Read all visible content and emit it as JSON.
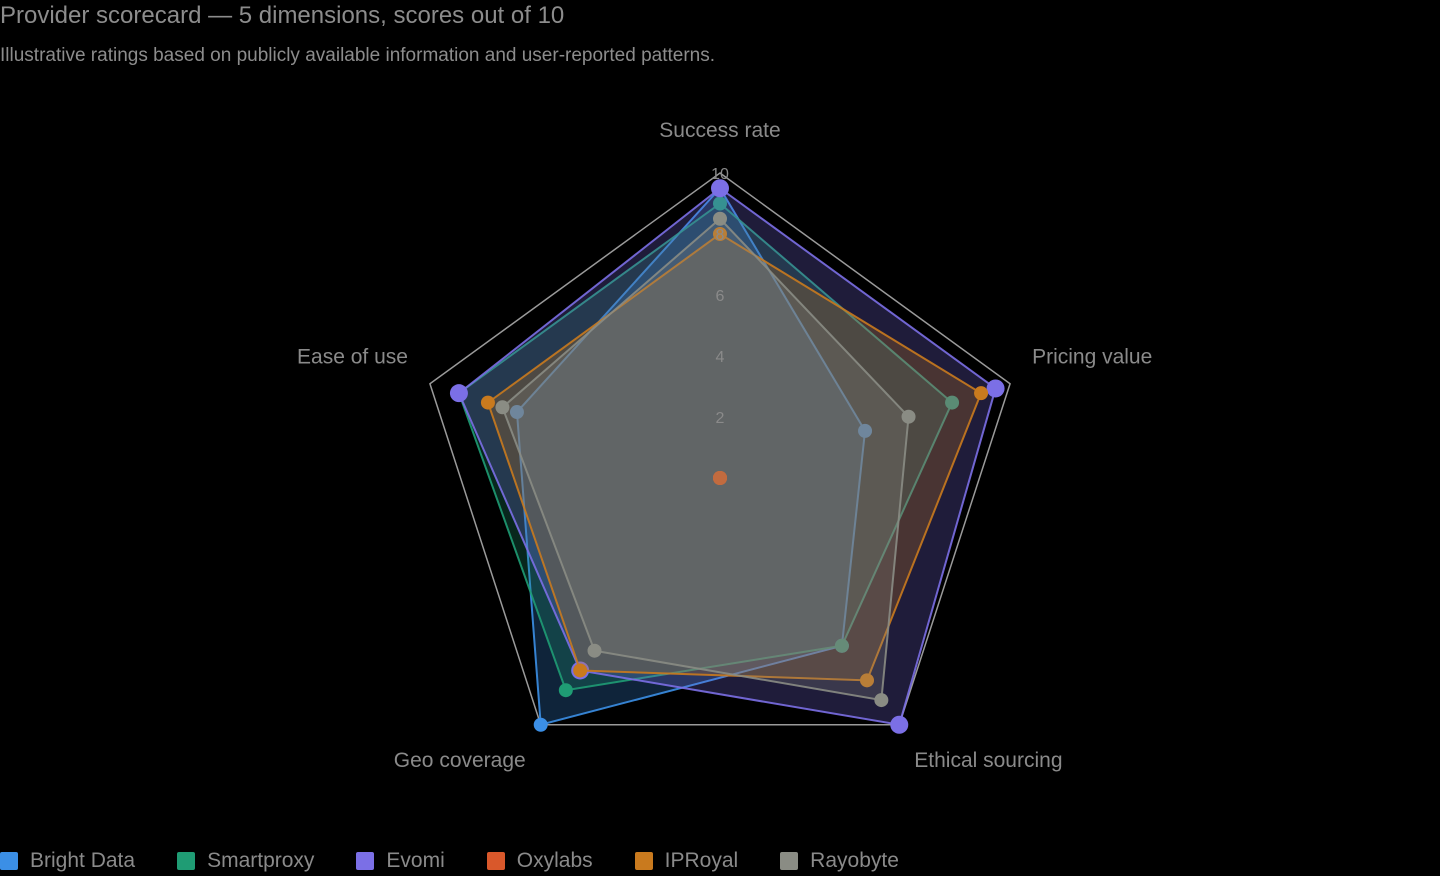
{
  "header": {
    "title": "Provider scorecard — 5 dimensions, scores out of 10",
    "subtitle": "Illustrative ratings based on publicly available information and user-reported patterns."
  },
  "colors": {
    "background": "#000000",
    "grid": "#9a9a9a",
    "text": "#8a8a8a"
  },
  "chart_data": {
    "type": "radar",
    "title": "Provider scorecard — 5 dimensions, scores out of 10",
    "subtitle": "Illustrative ratings based on publicly available information and user-reported patterns.",
    "axes": [
      "Success rate",
      "Pricing value",
      "Ethical sourcing",
      "Geo coverage",
      "Ease of use"
    ],
    "range": [
      0,
      10
    ],
    "ticks": [
      2,
      4,
      6,
      8,
      10
    ],
    "tick_labels": [
      "2",
      "4",
      "6",
      "8",
      "10"
    ],
    "grid": "outer pentagon only",
    "legend_position": "bottom-left",
    "series": [
      {
        "name": "Bright Data",
        "color": "#3b8fe6",
        "values": [
          9.5,
          5.0,
          6.8,
          10.0,
          7.0
        ]
      },
      {
        "name": "Smartproxy",
        "color": "#1f9c74",
        "values": [
          9.0,
          8.0,
          6.8,
          8.6,
          9.0
        ]
      },
      {
        "name": "Evomi",
        "color": "#7b6fe6",
        "values": [
          9.5,
          9.5,
          10.0,
          7.8,
          9.0
        ]
      },
      {
        "name": "Oxylabs",
        "color": "#d9582b",
        "values": [
          0,
          0,
          0,
          0,
          0
        ]
      },
      {
        "name": "IPRoyal",
        "color": "#c97a1e",
        "values": [
          8.0,
          9.0,
          8.2,
          7.8,
          8.0
        ]
      },
      {
        "name": "Rayobyte",
        "color": "#8a8c84",
        "values": [
          8.5,
          6.5,
          9.0,
          7.0,
          7.5
        ]
      }
    ]
  },
  "legend": [
    {
      "label": "Bright Data",
      "color": "#3b8fe6"
    },
    {
      "label": "Smartproxy",
      "color": "#1f9c74"
    },
    {
      "label": "Evomi",
      "color": "#7b6fe6"
    },
    {
      "label": "Oxylabs",
      "color": "#d9582b"
    },
    {
      "label": "IPRoyal",
      "color": "#c97a1e"
    },
    {
      "label": "Rayobyte",
      "color": "#8a8c84"
    }
  ]
}
